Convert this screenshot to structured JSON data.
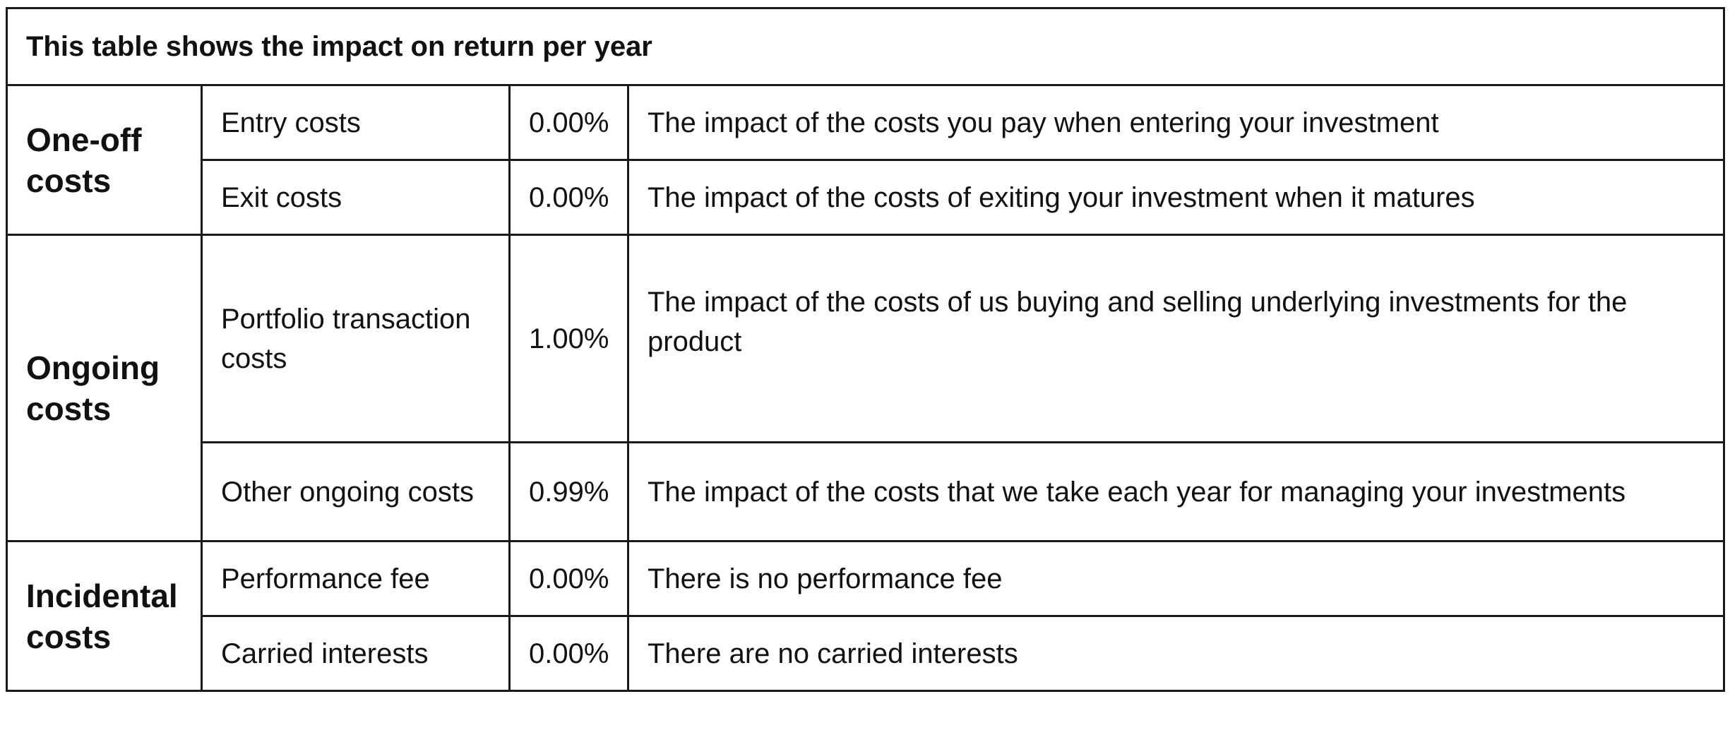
{
  "table": {
    "title": "This table shows the impact on return per year",
    "groups": [
      {
        "label": "One-off costs",
        "rows": [
          {
            "item": "Entry costs",
            "value": "0.00%",
            "description": "The impact of the costs you pay when entering your investment"
          },
          {
            "item": "Exit costs",
            "value": "0.00%",
            "description": "The impact of the costs of exiting your investment when it matures"
          }
        ]
      },
      {
        "label": "Ongoing costs",
        "rows": [
          {
            "item": "Portfolio transaction costs",
            "value": "1.00%",
            "description": "The impact of the costs of us buying and selling underlying investments for the product"
          },
          {
            "item": "Other ongoing costs",
            "value": "0.99%",
            "description": "The impact of the costs that we take each year for managing your investments"
          }
        ]
      },
      {
        "label": "Incidental costs",
        "rows": [
          {
            "item": "Performance fee",
            "value": "0.00%",
            "description": "There is no performance fee"
          },
          {
            "item": "Carried interests",
            "value": "0.00%",
            "description": "There are no carried interests"
          }
        ]
      }
    ]
  }
}
